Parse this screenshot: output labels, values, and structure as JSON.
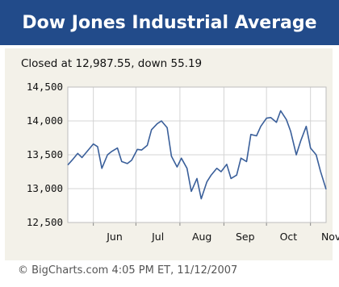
{
  "header": {
    "title": "Dow Jones Industrial Average"
  },
  "summary": "Closed at 12,987.55, down 55.19",
  "footer": "© BigCharts.com 4:05 PM ET, 11/12/2007",
  "colors": {
    "header_bg": "#224b8a",
    "panel_bg": "#f3f1e9",
    "line": "#3a5f9a"
  },
  "chart_data": {
    "type": "line",
    "title": "",
    "xlabel": "",
    "ylabel": "",
    "ylim": [
      12500,
      14500
    ],
    "y_ticks": [
      12500,
      13000,
      13500,
      14000,
      14500
    ],
    "y_tick_labels": [
      "12,500",
      "13,000",
      "13,500",
      "14,000",
      "14,500"
    ],
    "x_range": [
      "2007-05-14",
      "2007-11-12"
    ],
    "x_ticks": [
      "2007-06-01",
      "2007-07-01",
      "2007-08-01",
      "2007-09-01",
      "2007-10-01",
      "2007-11-01"
    ],
    "x_tick_labels": [
      "Jun",
      "Jul",
      "Aug",
      "Sep",
      "Oct",
      "Nov"
    ],
    "grid": true,
    "series": [
      {
        "x": [
          "2007-05-14",
          "2007-05-17",
          "2007-05-21",
          "2007-05-24",
          "2007-05-28",
          "2007-06-01",
          "2007-06-04",
          "2007-06-07",
          "2007-06-11",
          "2007-06-14",
          "2007-06-18",
          "2007-06-21",
          "2007-06-25",
          "2007-06-28",
          "2007-07-02",
          "2007-07-05",
          "2007-07-09",
          "2007-07-12",
          "2007-07-16",
          "2007-07-19",
          "2007-07-23",
          "2007-07-26",
          "2007-07-30",
          "2007-08-02",
          "2007-08-06",
          "2007-08-09",
          "2007-08-13",
          "2007-08-16",
          "2007-08-20",
          "2007-08-23",
          "2007-08-27",
          "2007-08-30",
          "2007-09-03",
          "2007-09-06",
          "2007-09-10",
          "2007-09-13",
          "2007-09-17",
          "2007-09-20",
          "2007-09-24",
          "2007-09-27",
          "2007-10-01",
          "2007-10-04",
          "2007-10-08",
          "2007-10-11",
          "2007-10-15",
          "2007-10-18",
          "2007-10-22",
          "2007-10-25",
          "2007-10-29",
          "2007-11-01",
          "2007-11-05",
          "2007-11-08",
          "2007-11-12"
        ],
        "y": [
          13350,
          13420,
          13520,
          13460,
          13560,
          13660,
          13620,
          13300,
          13500,
          13550,
          13600,
          13400,
          13370,
          13420,
          13580,
          13570,
          13640,
          13870,
          13960,
          14000,
          13900,
          13480,
          13320,
          13450,
          13300,
          12960,
          13150,
          12850,
          13100,
          13200,
          13300,
          13250,
          13360,
          13150,
          13200,
          13450,
          13400,
          13800,
          13780,
          13920,
          14040,
          14050,
          13980,
          14150,
          14020,
          13850,
          13500,
          13700,
          13920,
          13600,
          13500,
          13260,
          12990
        ]
      }
    ]
  }
}
